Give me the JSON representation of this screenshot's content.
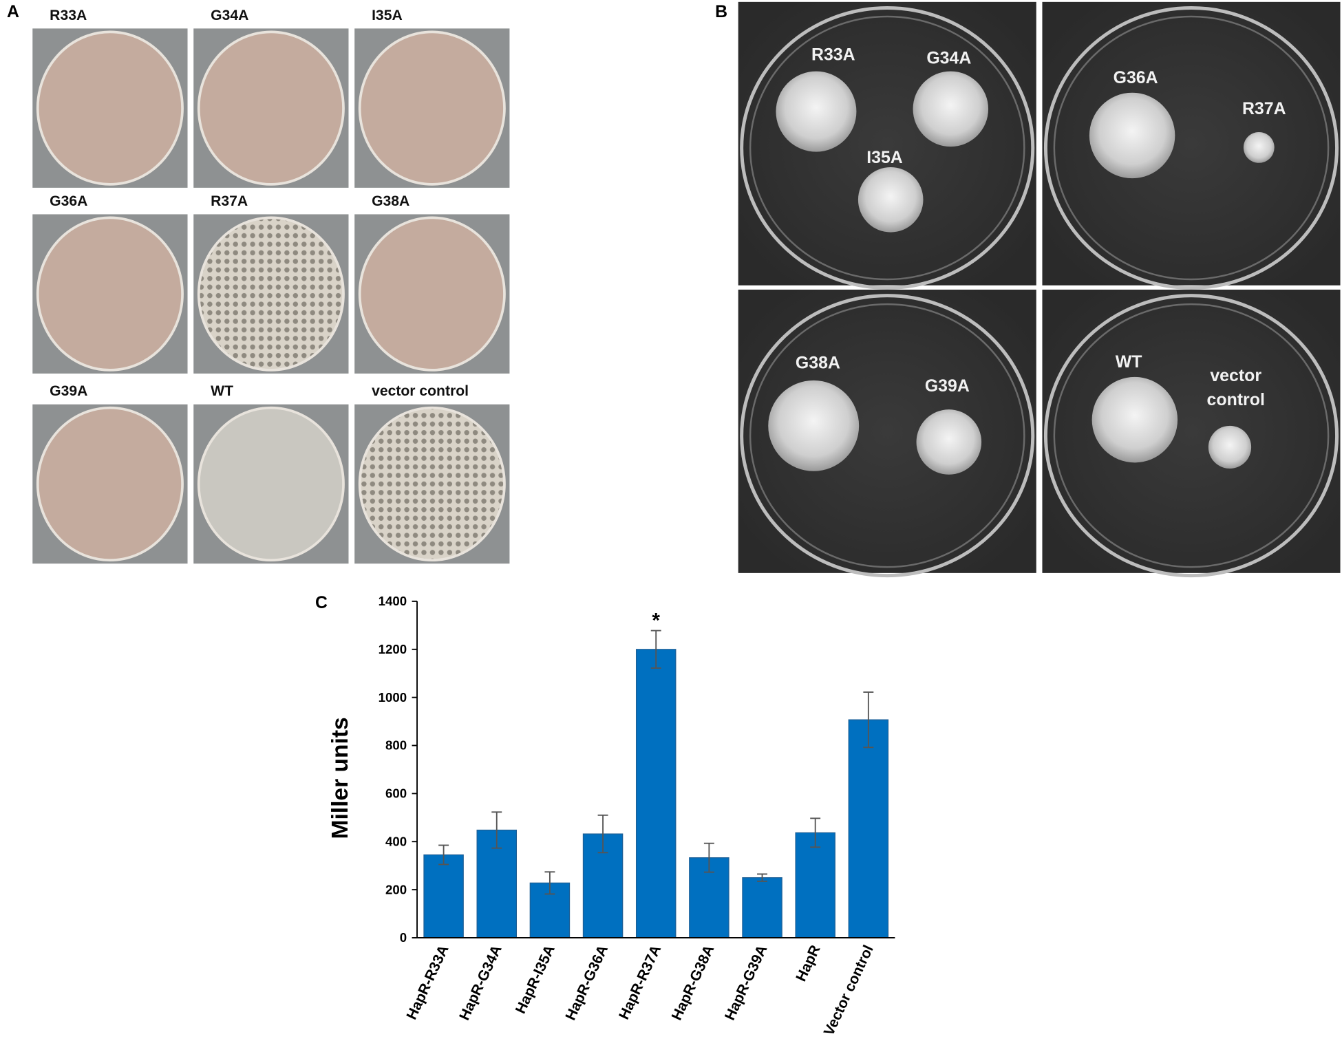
{
  "panel_a": {
    "letter": "A",
    "labels": [
      "R33A",
      "G34A",
      "I35A",
      "G36A",
      "R37A",
      "G38A",
      "G39A",
      "WT",
      "vector control"
    ]
  },
  "panel_b": {
    "letter": "B",
    "plates": [
      {
        "labels": [
          "R33A",
          "G34A",
          "I35A"
        ]
      },
      {
        "labels": [
          "G36A",
          "R37A"
        ]
      },
      {
        "labels": [
          "G38A",
          "G39A"
        ]
      },
      {
        "labels": [
          "WT",
          "vector control"
        ]
      }
    ]
  },
  "chart_data": {
    "type": "bar",
    "letter": "C",
    "ylabel": "Miller units",
    "annotation": "*",
    "categories": [
      "HapR-R33A",
      "HapR-G34A",
      "HapR-I35A",
      "HapR-G36A",
      "HapR-R37A",
      "HapR-G38A",
      "HapR-G39A",
      "HapR",
      "Vector control"
    ],
    "values": [
      345,
      448,
      228,
      432,
      1200,
      333,
      250,
      437,
      907
    ],
    "errors": [
      40,
      75,
      46,
      78,
      78,
      60,
      15,
      60,
      115
    ],
    "color": "#0070c0",
    "ylim": [
      0,
      1400
    ],
    "yticks": [
      0,
      200,
      400,
      600,
      800,
      1000,
      1200,
      1400
    ]
  }
}
